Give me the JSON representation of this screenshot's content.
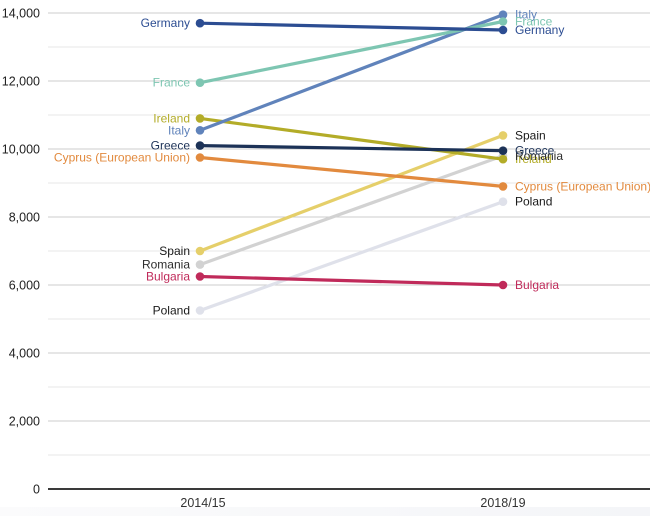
{
  "page": {
    "background_color": "#ffffff",
    "footer_strip_color": "#f4f5f8"
  },
  "chart_data": {
    "type": "line",
    "variant": "slope-chart",
    "title": "",
    "x_axis": {
      "categories": [
        "2014/15",
        "2018/19"
      ]
    },
    "y_axis": {
      "range": [
        0,
        14000
      ],
      "minor_grid_step": 1000,
      "ticks": [
        {
          "value": 0,
          "label": "0"
        },
        {
          "value": 2000,
          "label": "2,000"
        },
        {
          "value": 4000,
          "label": "4,000"
        },
        {
          "value": 6000,
          "label": "6,000"
        },
        {
          "value": 8000,
          "label": "8,000"
        },
        {
          "value": 10000,
          "label": "10,000"
        },
        {
          "value": 12000,
          "label": "12,000"
        },
        {
          "value": 14000,
          "label": "14,000"
        }
      ]
    },
    "grid": {
      "major_color": "#cccccc",
      "minor_color": "#e7e7e7",
      "zero_axis_color": "#3a3a3a",
      "grid_on": true
    },
    "text_colors": {
      "tick_label": "#222222",
      "category_label": "#333333"
    },
    "legend_position": "labels-at-line-ends",
    "series": [
      {
        "name": "Germany",
        "values": [
          13700,
          13500
        ],
        "color": "#2c4d92"
      },
      {
        "name": "France",
        "values": [
          11950,
          13750
        ],
        "color": "#7ec6b2"
      },
      {
        "name": "Ireland",
        "values": [
          10900,
          9700
        ],
        "color": "#b3ac28"
      },
      {
        "name": "Italy",
        "values": [
          10550,
          13950
        ],
        "color": "#6083bb"
      },
      {
        "name": "Greece",
        "values": [
          10100,
          9950
        ],
        "color": "#1c3257"
      },
      {
        "name": "Cyprus (European Union)",
        "values": [
          9750,
          8900
        ],
        "color": "#e28a3e"
      },
      {
        "name": "Spain",
        "values": [
          7000,
          10400
        ],
        "color": "#e5cf6a",
        "label_color": "#1a1a1a"
      },
      {
        "name": "Romania",
        "values": [
          6600,
          9800
        ],
        "color": "#d2d2d2",
        "label_color": "#2e2e2e"
      },
      {
        "name": "Bulgaria",
        "values": [
          6250,
          6000
        ],
        "color": "#c02a5a"
      },
      {
        "name": "Poland",
        "values": [
          5250,
          8450
        ],
        "color": "#dfe1ea",
        "label_color": "#1a1a1a"
      }
    ],
    "line_draw_order": [
      "Poland",
      "Romania",
      "Spain",
      "Ireland",
      "Cyprus (European Union)",
      "Italy",
      "France",
      "Bulgaria",
      "Greece",
      "Germany"
    ],
    "label_draw_order": [
      "Poland",
      "Spain",
      "Ireland",
      "Romania",
      "Greece",
      "Cyprus (European Union)",
      "Italy",
      "France",
      "Bulgaria",
      "Germany"
    ]
  }
}
